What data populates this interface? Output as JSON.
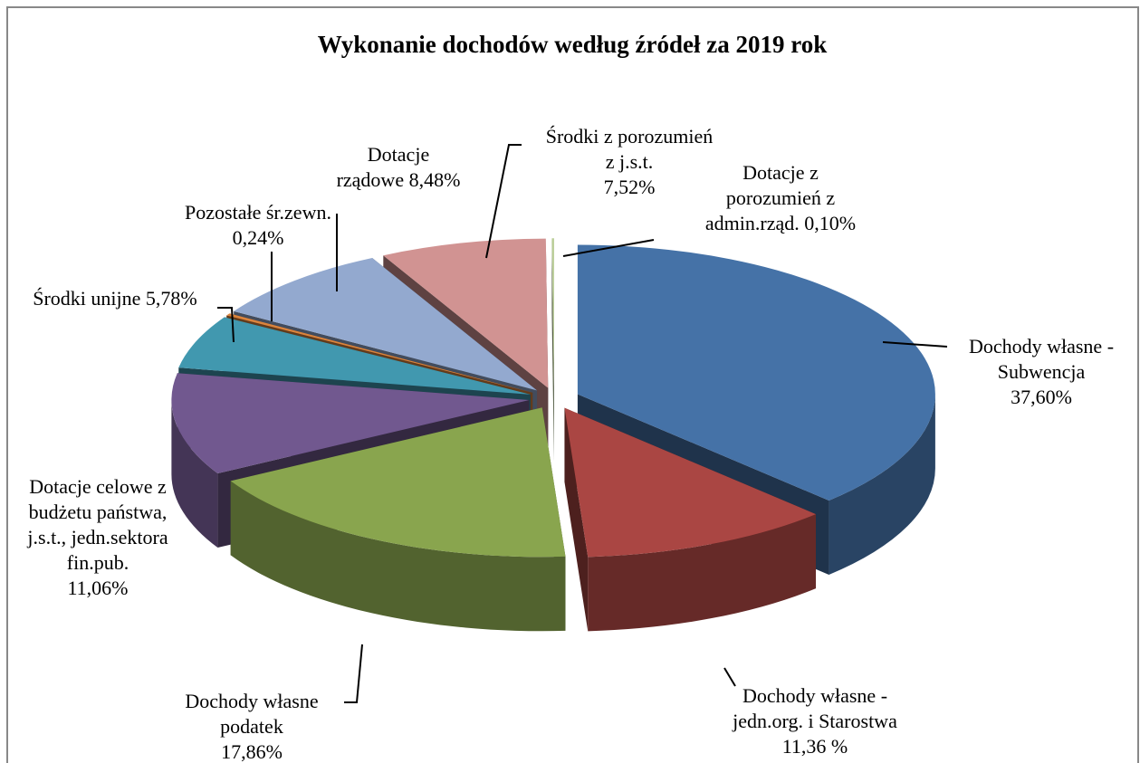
{
  "chart_data": {
    "type": "pie",
    "title": "Wykonanie  dochodów według źródeł za 2019 rok",
    "categories": [
      "Dochody własne - Subwencja",
      "Dochody własne - jedn.org. i Starostwa",
      "Dochody własne podatek",
      "Dotacje celowe z budżetu państwa, j.s.t., jedn.sektora fin.pub.",
      "Środki unijne",
      "Pozostałe śr.zewn.",
      "Dotacje rządowe",
      "Środki z porozumień z j.s.t.",
      "Dotacje z porozumień z admin.rząd."
    ],
    "values": [
      37.6,
      11.36,
      17.86,
      11.06,
      5.78,
      0.24,
      8.48,
      7.52,
      0.1
    ],
    "value_labels": [
      "37,60%",
      "11,36 %",
      "17,86%",
      "11,06%",
      "5,78%",
      "0,24%",
      "8,48%",
      "7,52%",
      "0,10%"
    ],
    "colors": [
      "#4572a7",
      "#aa4643",
      "#89a54e",
      "#71588f",
      "#4198af",
      "#db843d",
      "#93a9cf",
      "#d19392",
      "#b9cd96"
    ]
  }
}
